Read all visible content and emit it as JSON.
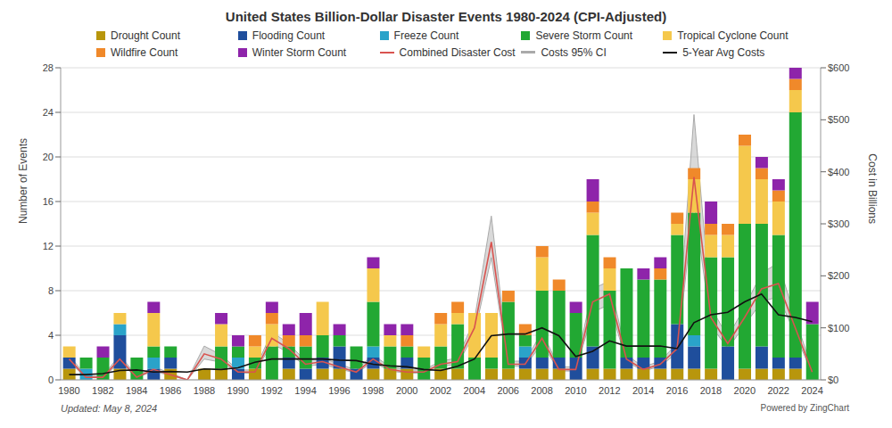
{
  "chart_data": {
    "type": "bar",
    "title": "United States Billion-Dollar Disaster Events 1980-2024 (CPI-Adjusted)",
    "y_label": "Number of Events",
    "y2_label": "Cost in Billions",
    "annotations": [
      "Updated: May 8, 2024",
      "Powered by ZingChart"
    ],
    "stacked": true,
    "grid": true,
    "legend": "top",
    "categories": [
      "1980",
      null,
      "1982",
      null,
      "1984",
      null,
      "1986",
      null,
      "1988",
      null,
      "1990",
      null,
      "1992",
      null,
      "1994",
      null,
      "1996",
      null,
      "1998",
      null,
      "2000",
      null,
      "2002",
      null,
      "2004",
      null,
      "2006",
      null,
      "2008",
      null,
      "2010",
      null,
      "2012",
      null,
      "2014",
      null,
      "2016",
      null,
      "2018",
      null,
      "2020",
      null,
      "2022",
      null,
      "2024"
    ],
    "ylim": [
      0,
      28
    ],
    "yticks": [
      0,
      4,
      8,
      12,
      16,
      20,
      24,
      28
    ],
    "y2lim": [
      0,
      600
    ],
    "y2ticks": [
      {
        "value": 0,
        "label": "$0"
      },
      {
        "value": 100,
        "label": "$100"
      },
      {
        "value": 200,
        "label": "$200"
      },
      {
        "value": 300,
        "label": "$300"
      },
      {
        "value": 400,
        "label": "$400"
      },
      {
        "value": 500,
        "label": "$500"
      },
      {
        "value": 600,
        "label": "$600"
      }
    ],
    "series": [
      {
        "name": "Drought Count",
        "type": "bar",
        "color": "#b8960c",
        "values": [
          1,
          0,
          0,
          1,
          0,
          0,
          1,
          0,
          1,
          1,
          0,
          1,
          0,
          1,
          0,
          1,
          1,
          0,
          1,
          1,
          1,
          0,
          1,
          1,
          0,
          1,
          1,
          1,
          1,
          1,
          0,
          1,
          1,
          1,
          1,
          1,
          1,
          1,
          1,
          0,
          1,
          1,
          1,
          1,
          0
        ]
      },
      {
        "name": "Flooding Count",
        "type": "bar",
        "color": "#1f4e9c",
        "values": [
          1,
          0,
          0,
          3,
          0,
          1,
          1,
          0,
          0,
          0,
          1,
          0,
          0,
          1,
          1,
          1,
          2,
          1,
          1,
          0,
          1,
          0,
          0,
          0,
          0,
          0,
          0,
          1,
          1,
          1,
          2,
          2,
          0,
          1,
          1,
          1,
          4,
          2,
          0,
          3,
          0,
          2,
          1,
          1,
          0
        ]
      },
      {
        "name": "Freeze Count",
        "type": "bar",
        "color": "#2aa3c9",
        "values": [
          0,
          1,
          0,
          1,
          0,
          1,
          0,
          0,
          0,
          0,
          1,
          0,
          0,
          0,
          0,
          0,
          0,
          0,
          1,
          0,
          0,
          0,
          0,
          0,
          0,
          0,
          0,
          1,
          0,
          0,
          0,
          0,
          0,
          0,
          0,
          0,
          0,
          1,
          0,
          0,
          0,
          0,
          0,
          0,
          0
        ]
      },
      {
        "name": "Severe Storm Count",
        "type": "bar",
        "color": "#22a833",
        "values": [
          0,
          1,
          2,
          0,
          2,
          1,
          1,
          0,
          0,
          2,
          1,
          1,
          3,
          1,
          2,
          2,
          1,
          2,
          4,
          2,
          1,
          2,
          2,
          4,
          2,
          1,
          6,
          1,
          6,
          6,
          4,
          10,
          7,
          8,
          7,
          7,
          8,
          11,
          10,
          8,
          13,
          11,
          11,
          22,
          5
        ]
      },
      {
        "name": "Tropical Cyclone Count",
        "type": "bar",
        "color": "#f5c84c",
        "values": [
          1,
          0,
          0,
          1,
          0,
          3,
          0,
          0,
          0,
          2,
          0,
          1,
          2,
          0,
          0,
          3,
          0,
          0,
          3,
          1,
          0,
          1,
          2,
          1,
          4,
          4,
          0,
          0,
          3,
          0,
          0,
          2,
          2,
          0,
          0,
          0,
          1,
          3,
          2,
          2,
          7,
          4,
          3,
          2,
          0
        ]
      },
      {
        "name": "Wildfire Count",
        "type": "bar",
        "color": "#f0892a",
        "values": [
          0,
          0,
          0,
          0,
          0,
          0,
          0,
          0,
          0,
          0,
          0,
          1,
          1,
          1,
          1,
          0,
          0,
          0,
          0,
          0,
          1,
          0,
          1,
          1,
          0,
          0,
          1,
          1,
          1,
          1,
          0,
          1,
          1,
          0,
          0,
          1,
          1,
          1,
          1,
          1,
          1,
          1,
          1,
          1,
          0
        ]
      },
      {
        "name": "Winter Storm Count",
        "type": "bar",
        "color": "#8e24aa",
        "values": [
          0,
          0,
          1,
          0,
          0,
          1,
          0,
          0,
          0,
          1,
          1,
          0,
          1,
          1,
          2,
          0,
          1,
          0,
          1,
          1,
          1,
          0,
          0,
          0,
          0,
          0,
          0,
          0,
          0,
          0,
          1,
          2,
          0,
          0,
          1,
          1,
          0,
          0,
          2,
          0,
          0,
          1,
          1,
          1,
          2
        ]
      },
      {
        "name": "Combined Disaster Cost",
        "type": "line",
        "axis": "y2",
        "color": "#d9534f",
        "values": [
          40,
          5,
          5,
          40,
          5,
          20,
          10,
          0,
          50,
          40,
          15,
          15,
          80,
          60,
          30,
          35,
          25,
          15,
          40,
          20,
          15,
          15,
          30,
          35,
          100,
          265,
          30,
          30,
          80,
          20,
          20,
          150,
          165,
          40,
          20,
          30,
          60,
          390,
          120,
          70,
          120,
          175,
          185,
          100,
          15
        ]
      },
      {
        "name": "Costs 95% CI",
        "type": "area",
        "axis": "y2",
        "color": "#aaaaaa",
        "values": [
          [
            35,
            48
          ],
          [
            4,
            7
          ],
          [
            4,
            7
          ],
          [
            34,
            48
          ],
          [
            4,
            7
          ],
          [
            17,
            25
          ],
          [
            8,
            13
          ],
          [
            0,
            0
          ],
          [
            40,
            65
          ],
          [
            34,
            48
          ],
          [
            13,
            19
          ],
          [
            13,
            19
          ],
          [
            70,
            92
          ],
          [
            52,
            70
          ],
          [
            26,
            36
          ],
          [
            30,
            42
          ],
          [
            21,
            30
          ],
          [
            13,
            19
          ],
          [
            34,
            48
          ],
          [
            17,
            25
          ],
          [
            13,
            19
          ],
          [
            13,
            19
          ],
          [
            26,
            36
          ],
          [
            30,
            42
          ],
          [
            88,
            115
          ],
          [
            235,
            315
          ],
          [
            26,
            36
          ],
          [
            26,
            36
          ],
          [
            70,
            92
          ],
          [
            17,
            25
          ],
          [
            17,
            25
          ],
          [
            130,
            175
          ],
          [
            145,
            190
          ],
          [
            35,
            48
          ],
          [
            17,
            25
          ],
          [
            26,
            36
          ],
          [
            52,
            70
          ],
          [
            340,
            510
          ],
          [
            105,
            140
          ],
          [
            60,
            82
          ],
          [
            105,
            140
          ],
          [
            150,
            205
          ],
          [
            160,
            225
          ],
          [
            88,
            118
          ],
          [
            12,
            20
          ]
        ]
      },
      {
        "name": "5-Year Avg Costs",
        "type": "line",
        "axis": "y2",
        "color": "#111111",
        "values": [
          10,
          10,
          12,
          18,
          19,
          15,
          16,
          15,
          21,
          20,
          23,
          34,
          40,
          40,
          40,
          40,
          38,
          37,
          30,
          27,
          25,
          20,
          18,
          26,
          40,
          85,
          88,
          88,
          100,
          85,
          45,
          55,
          75,
          65,
          65,
          65,
          60,
          110,
          125,
          130,
          150,
          165,
          125,
          120,
          112
        ]
      }
    ]
  }
}
